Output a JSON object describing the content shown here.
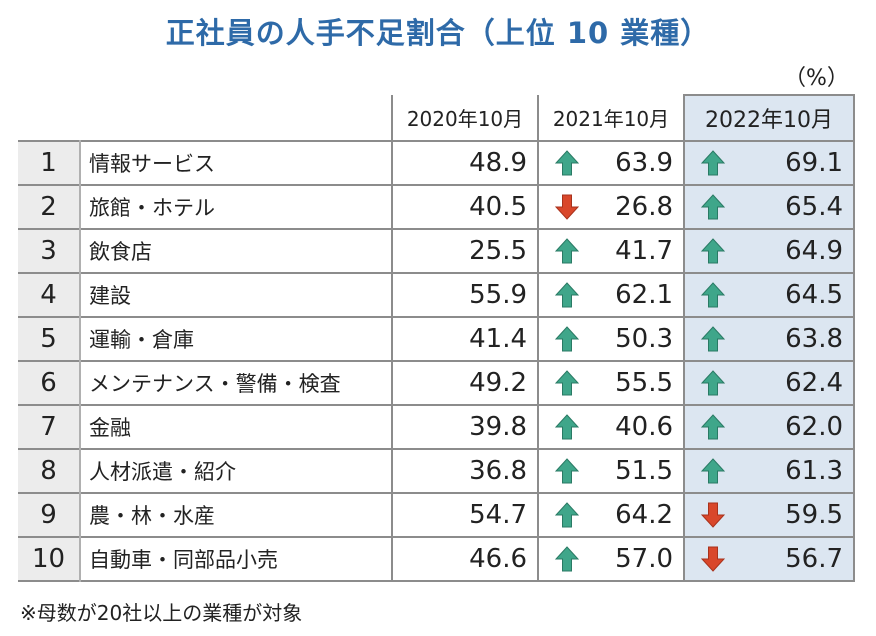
{
  "title": "正社員の人手不足割合（上位 10 業種）",
  "unit": "（%）",
  "note": "※母数が20社以上の業種が対象",
  "colors": {
    "title": "#2e6aa8",
    "up": "#3fa68a",
    "down": "#d9472b",
    "highlight": "#dce6f1"
  },
  "chart_data": {
    "type": "table",
    "columns": [
      "2020年10月",
      "2021年10月",
      "2022年10月"
    ],
    "rows": [
      {
        "rank": "1",
        "industry": "情報サービス",
        "v2020": "48.9",
        "v2021": "63.9",
        "t2021": "up",
        "v2022": "69.1",
        "t2022": "up"
      },
      {
        "rank": "2",
        "industry": "旅館・ホテル",
        "v2020": "40.5",
        "v2021": "26.8",
        "t2021": "down",
        "v2022": "65.4",
        "t2022": "up"
      },
      {
        "rank": "3",
        "industry": "飲食店",
        "v2020": "25.5",
        "v2021": "41.7",
        "t2021": "up",
        "v2022": "64.9",
        "t2022": "up"
      },
      {
        "rank": "4",
        "industry": "建設",
        "v2020": "55.9",
        "v2021": "62.1",
        "t2021": "up",
        "v2022": "64.5",
        "t2022": "up"
      },
      {
        "rank": "5",
        "industry": "運輸・倉庫",
        "v2020": "41.4",
        "v2021": "50.3",
        "t2021": "up",
        "v2022": "63.8",
        "t2022": "up"
      },
      {
        "rank": "6",
        "industry": "メンテナンス・警備・検査",
        "v2020": "49.2",
        "v2021": "55.5",
        "t2021": "up",
        "v2022": "62.4",
        "t2022": "up"
      },
      {
        "rank": "7",
        "industry": "金融",
        "v2020": "39.8",
        "v2021": "40.6",
        "t2021": "up",
        "v2022": "62.0",
        "t2022": "up"
      },
      {
        "rank": "8",
        "industry": "人材派遣・紹介",
        "v2020": "36.8",
        "v2021": "51.5",
        "t2021": "up",
        "v2022": "61.3",
        "t2022": "up"
      },
      {
        "rank": "9",
        "industry": "農・林・水産",
        "v2020": "54.7",
        "v2021": "64.2",
        "t2021": "up",
        "v2022": "59.5",
        "t2022": "down"
      },
      {
        "rank": "10",
        "industry": "自動車・同部品小売",
        "v2020": "46.6",
        "v2021": "57.0",
        "t2021": "up",
        "v2022": "56.7",
        "t2022": "down"
      }
    ]
  }
}
